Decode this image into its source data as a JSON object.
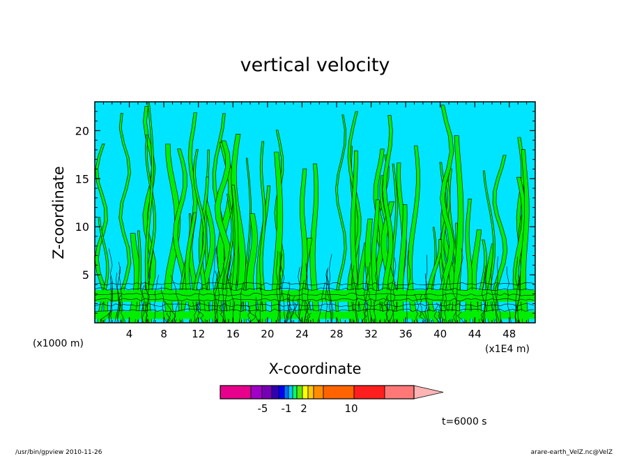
{
  "chart_data": {
    "type": "heatmap",
    "title": "vertical velocity",
    "xlabel": "X-coordinate",
    "ylabel": "Z-coordinate",
    "x_units_left": "(x1000 m)",
    "x_units_right": "(x1E4 m)",
    "x_ticks": [
      4,
      8,
      12,
      16,
      20,
      24,
      28,
      32,
      36,
      40,
      44,
      48
    ],
    "y_ticks": [
      5,
      10,
      15,
      20
    ],
    "xlim": [
      0,
      51
    ],
    "ylim": [
      0,
      23
    ],
    "grid": false,
    "colorbar": {
      "tick_labels": [
        {
          "label": "-5",
          "value": -5
        },
        {
          "label": "-1",
          "value": -1
        },
        {
          "label": "2",
          "value": 2
        },
        {
          "label": "10",
          "value": 10
        }
      ],
      "colors": [
        "#e6008c",
        "#a000c8",
        "#7800b4",
        "#3200b4",
        "#0000ff",
        "#0070ff",
        "#00c8ff",
        "#00ff70",
        "#64e600",
        "#ffff00",
        "#ffc800",
        "#ff8c00",
        "#ff6400",
        "#ff1e1e",
        "#ff7878",
        "#ffb4b4"
      ],
      "main_colors": {
        "negative": "#00e5ff",
        "positive": "#00ee00"
      }
    },
    "time_label": "t=6000 s"
  },
  "footer": {
    "left": "/usr/bin/gpview   2010-11-26",
    "right": "arare-earth_VelZ.nc@VelZ"
  }
}
